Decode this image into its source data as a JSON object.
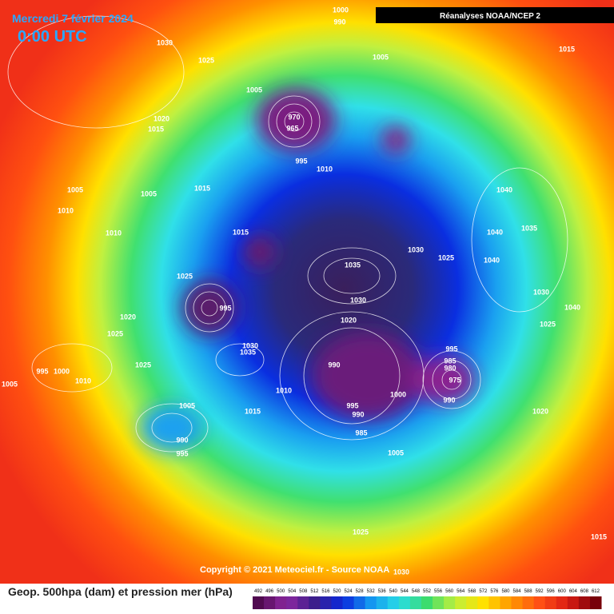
{
  "header": {
    "title": "Mercredi 7 février 2024",
    "time": "0:00 UTC",
    "source_box": "Réanalyses NOAA/NCEP 2"
  },
  "footer": {
    "copyright": "Copyright © 2021 Meteociel.fr - Source NOAA",
    "legend_title": "Geop. 500hpa (dam) et pression mer (hPa)"
  },
  "colorbar": {
    "levels": [
      492,
      496,
      500,
      504,
      508,
      512,
      516,
      520,
      524,
      528,
      532,
      536,
      540,
      544,
      548,
      552,
      556,
      560,
      564,
      568,
      572,
      576,
      580,
      584,
      588,
      592,
      596,
      600,
      604,
      608,
      612
    ]
  },
  "isobar_labels": [
    1000,
    990,
    1030,
    1025,
    1005,
    1015,
    1005,
    970,
    965,
    1020,
    1015,
    995,
    1010,
    1015,
    1005,
    1005,
    1040,
    1010,
    1010,
    1015,
    1040,
    1035,
    1030,
    1025,
    1040,
    1035,
    1025,
    995,
    1030,
    1030,
    1040,
    1020,
    1020,
    1025,
    1025,
    1030,
    1035,
    995,
    990,
    985,
    980,
    975,
    1025,
    995,
    1000,
    1010,
    1005,
    1000,
    1010,
    990,
    995,
    1005,
    1015,
    990,
    1020,
    990,
    985,
    995,
    1005,
    1025,
    1015,
    1030
  ]
}
